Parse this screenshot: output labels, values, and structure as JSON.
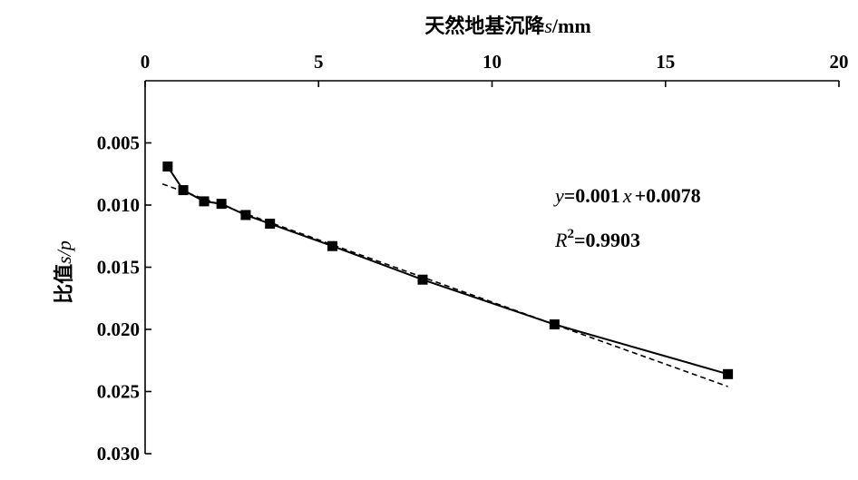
{
  "chart_data": {
    "type": "scatter",
    "title": "",
    "xlabel": {
      "prefix": "天然地基沉降",
      "var": "s",
      "unit": "/mm"
    },
    "ylabel": {
      "prefix": "比值",
      "var": "s/p"
    },
    "x_axis_position": "top",
    "y_axis_inverted": true,
    "xlim": [
      0,
      20
    ],
    "ylim": [
      0.03,
      0.0
    ],
    "x_ticks": [
      0,
      5,
      10,
      15,
      20
    ],
    "x_tick_labels": [
      "0",
      "5",
      "10",
      "15",
      "20"
    ],
    "y_ticks": [
      0.005,
      0.01,
      0.015,
      0.02,
      0.025,
      0.03
    ],
    "y_tick_labels": [
      "0.005",
      "0.010",
      "0.015",
      "0.020",
      "0.025",
      "0.030"
    ],
    "grid": false,
    "series": [
      {
        "marker": "square",
        "line": "solid",
        "x": [
          0.65,
          1.1,
          1.7,
          2.2,
          2.9,
          3.6,
          5.4,
          8.0,
          11.8,
          16.8
        ],
        "y": [
          0.0069,
          0.0088,
          0.0097,
          0.0099,
          0.0108,
          0.0115,
          0.0133,
          0.016,
          0.0196,
          0.0236
        ]
      }
    ],
    "fit_line": {
      "style": "dashed",
      "slope": 0.001,
      "intercept": 0.0078,
      "x_range": [
        0.5,
        16.8
      ]
    },
    "annotations": {
      "equation": {
        "y": "y",
        "eq": "=0.001",
        "x": "x",
        "rest": "+0.0078"
      },
      "r2": {
        "R": "R",
        "sup": "2",
        "rest": "=0.9903"
      }
    }
  }
}
